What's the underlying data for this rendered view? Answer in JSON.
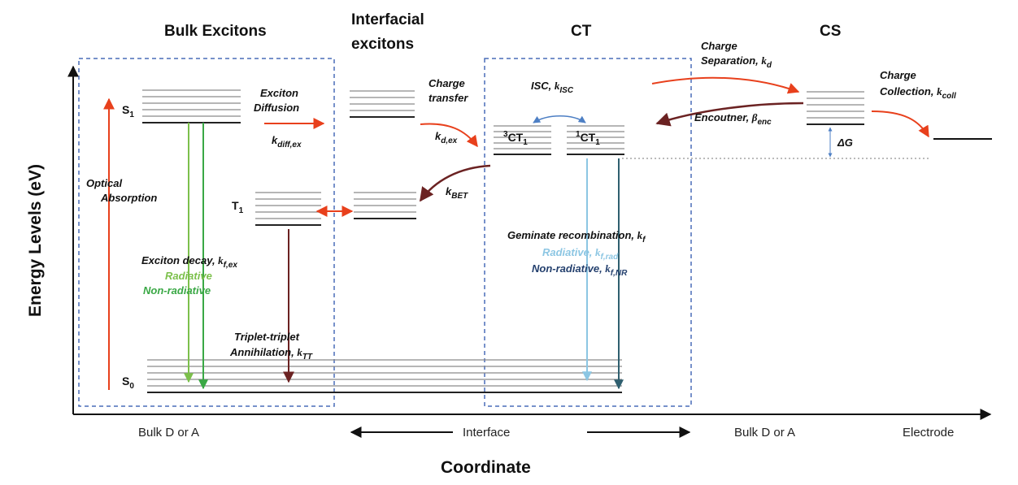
{
  "headers": {
    "bulk_excitons": "Bulk Excitons",
    "interfacial_line1": "Interfacial",
    "interfacial_line2": "excitons",
    "ct": "CT",
    "cs": "CS"
  },
  "axes": {
    "y_title": "Energy Levels (eV)",
    "x_title": "Coordinate",
    "x_regions": [
      "Bulk D or A",
      "Interface",
      "Bulk D or A",
      "Electrode"
    ]
  },
  "levels": {
    "s1": "S",
    "s1_sub": "1",
    "t1": "T",
    "t1_sub": "1",
    "s0": "S",
    "s0_sub": "0",
    "ct3_sup": "3",
    "ct3": "CT",
    "ct3_sub": "1",
    "ct1_sup": "1",
    "ct1": "CT",
    "ct1_sub": "1"
  },
  "processes": {
    "optical_line1": "Optical",
    "optical_line2": "Absorption",
    "exciton_line1": "Exciton",
    "exciton_line2": "Diffusion",
    "k_diff": "k",
    "k_diff_sub": "diff,ex",
    "charge_transfer_line1": "Charge",
    "charge_transfer_line2": "transfer",
    "k_dex": "k",
    "k_dex_sub": "d,ex",
    "k_bet": "k",
    "k_bet_sub": "BET",
    "isc": "ISC, ",
    "k_isc": "k",
    "k_isc_sub": "ISC",
    "charge_sep_line1": "Charge",
    "charge_sep_line2": "Separation, ",
    "k_d": "k",
    "k_d_sub": "d",
    "encounter": "Encoutner, ",
    "beta": "β",
    "beta_sub": "enc",
    "delta_g": "ΔG",
    "collection_line1": "Charge",
    "collection_line2": "Collection, ",
    "k_coll": "k",
    "k_coll_sub": "coll",
    "exciton_decay": "Exciton decay, ",
    "k_fex": "k",
    "k_fex_sub": "f,ex",
    "radiative": "Radiative",
    "non_radiative": "Non-radiative",
    "tt_line1": "Triplet-triplet",
    "tt_line2": "Annihilation, ",
    "k_tt": "k",
    "k_tt_sub": "TT",
    "geminate": "Geminate recombination, ",
    "k_f": "k",
    "k_f_sub": "f",
    "ct_radiative": "Radiative, ",
    "k_frad": "k",
    "k_frad_sub": "f,rad",
    "ct_nonradiative": "Non-radiative, ",
    "k_fnr": "k",
    "k_fnr_sub": "f,NR"
  },
  "colors": {
    "red_arrow": "#e8401c",
    "dark_red_arrow": "#6b2222",
    "green_light": "#7cc04b",
    "green": "#3aa845",
    "blue_light": "#8cc6e3",
    "blue_dark": "#2f5f6f",
    "box_dash": "#4a6db8",
    "isc_arrow": "#4d7fc4"
  }
}
